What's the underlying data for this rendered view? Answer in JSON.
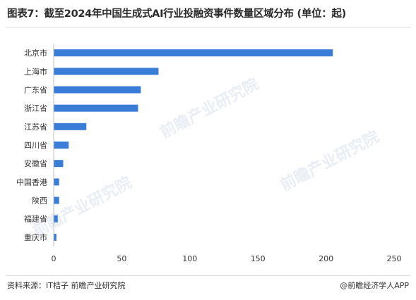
{
  "header": {
    "title": "图表7：截至2024年中国生成式AI行业投融资事件数量区域分布 (单位：起)"
  },
  "chart_data": {
    "type": "bar",
    "orientation": "horizontal",
    "categories": [
      "北京市",
      "上海市",
      "广东省",
      "浙江省",
      "江苏省",
      "四川省",
      "安徽省",
      "中国香港",
      "陕西",
      "福建省",
      "重庆市"
    ],
    "values": [
      205,
      77,
      64,
      62,
      24,
      11,
      7,
      4,
      4,
      3,
      2
    ],
    "xlim": [
      0,
      250
    ],
    "xticks": [
      "0",
      "50",
      "100",
      "150",
      "200",
      "250"
    ],
    "bar_color": "#3a7dd9",
    "grid": false,
    "legend": "none"
  },
  "watermark": {
    "text": "前瞻产业研究院"
  },
  "footer": {
    "source": "资料来源：IT桔子 前瞻产业研究院",
    "brand": "@前瞻经济学人APP"
  }
}
